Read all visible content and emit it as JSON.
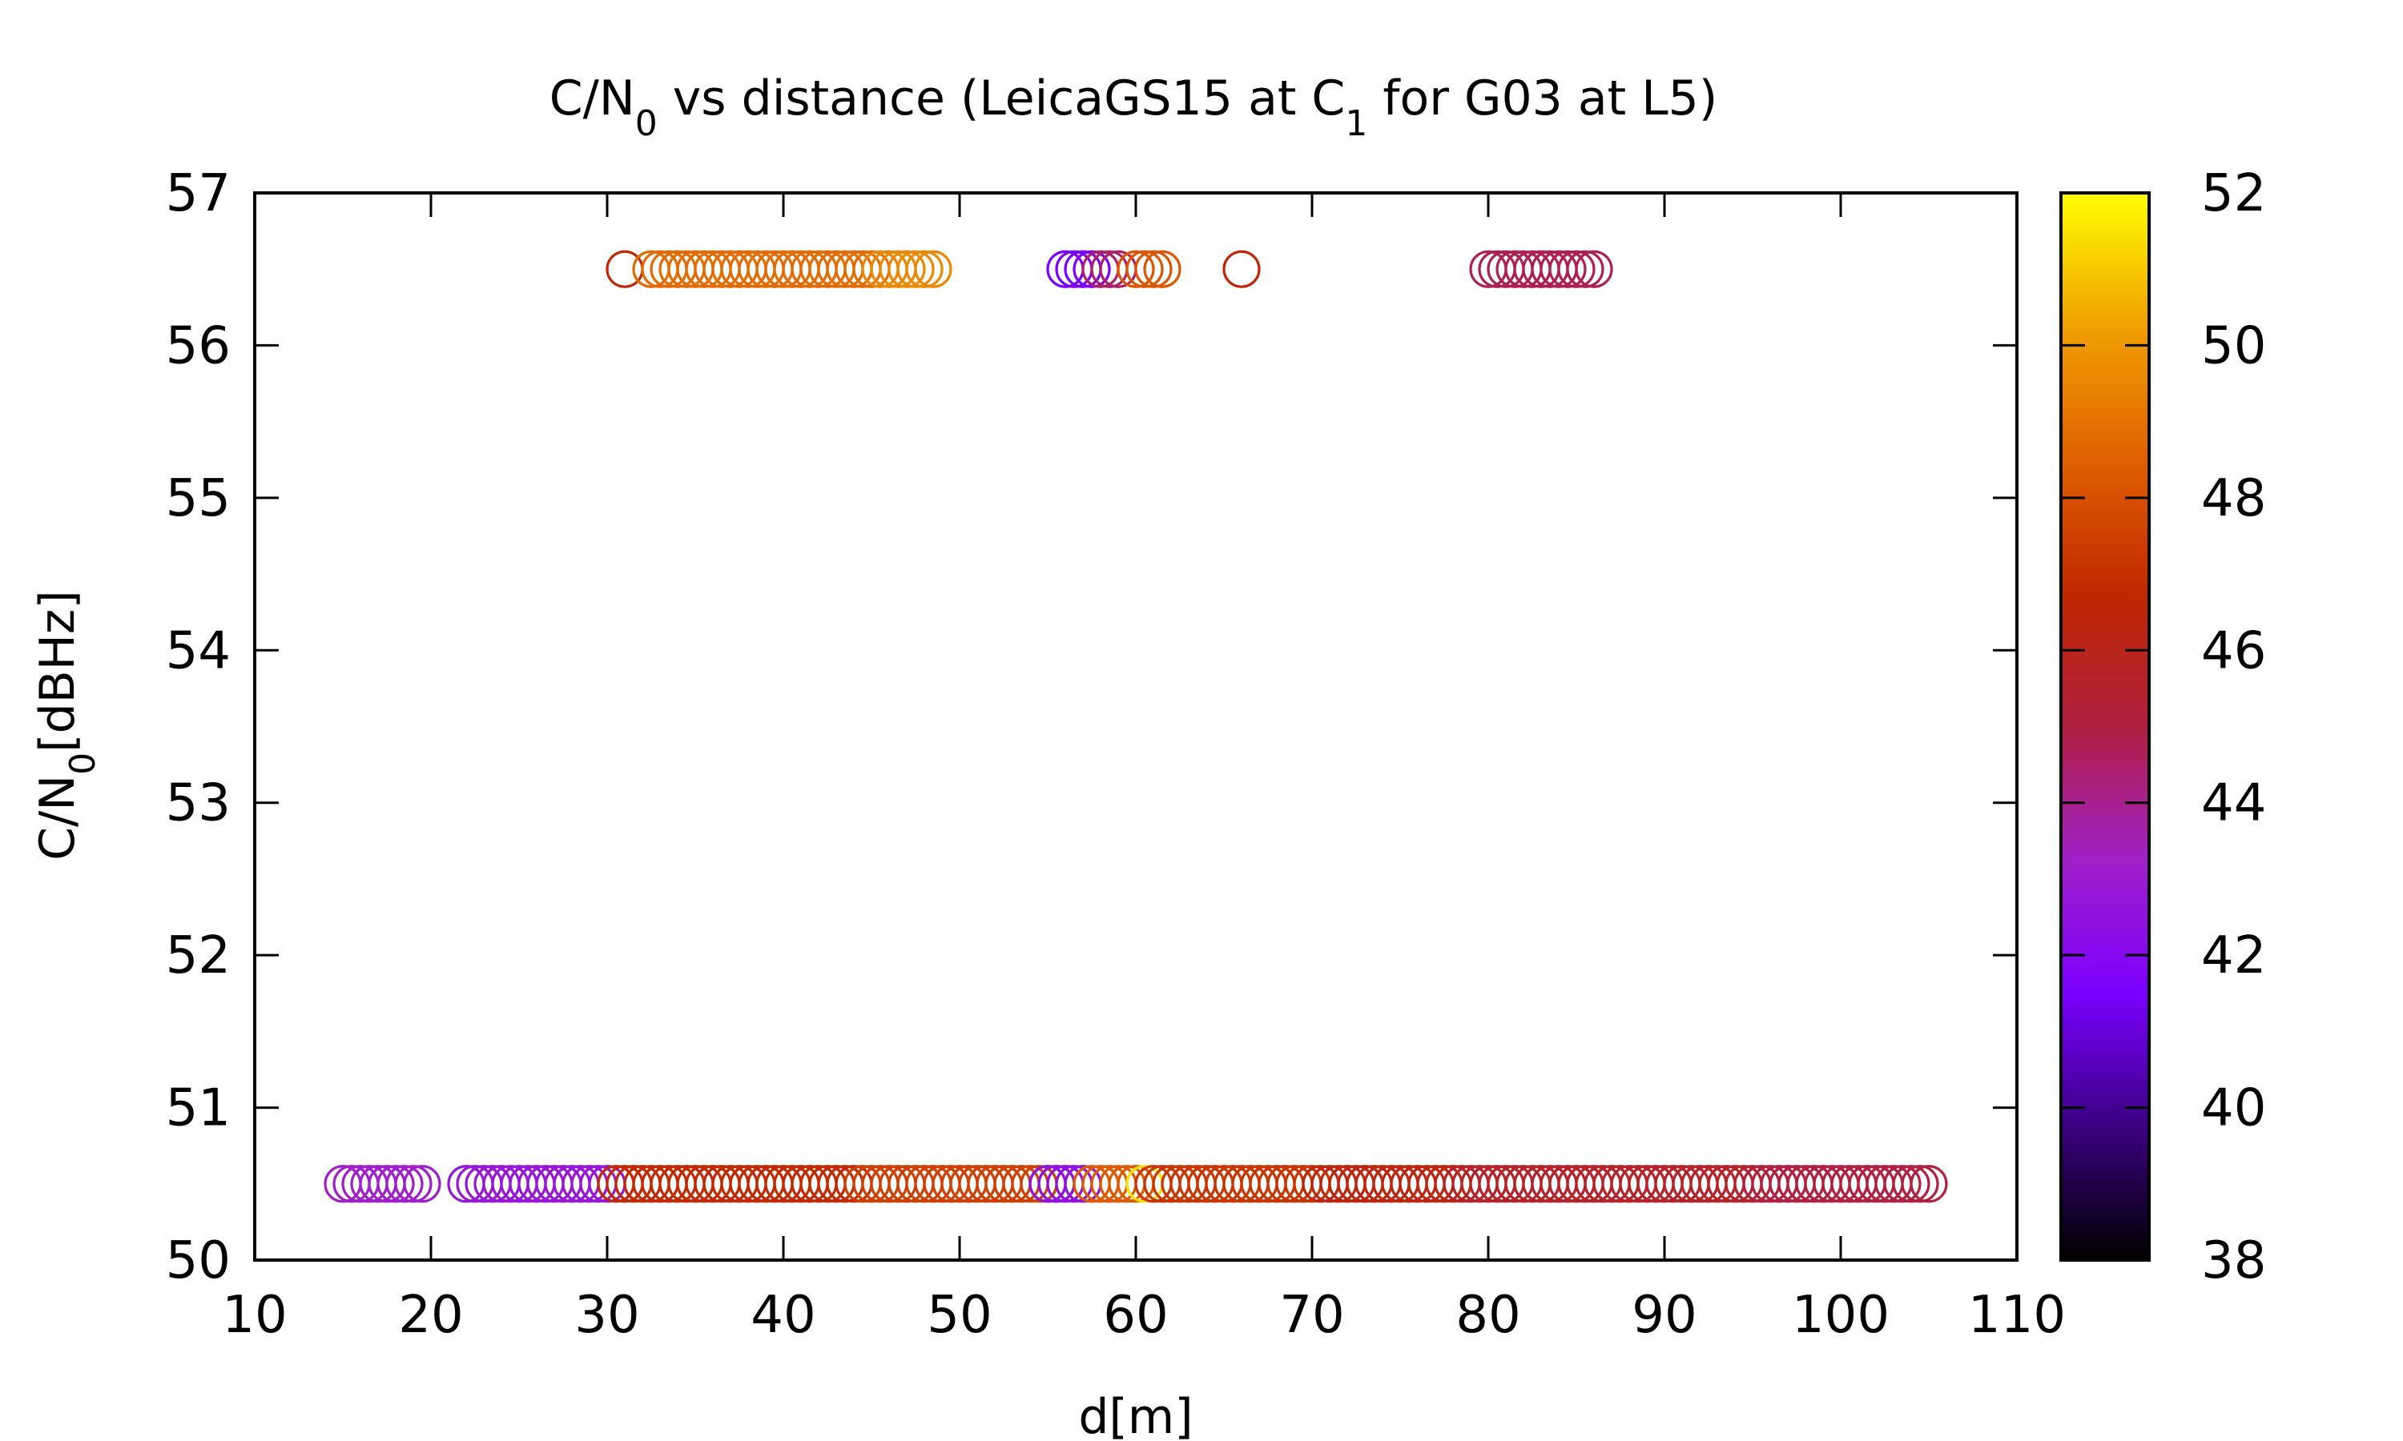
{
  "chart_data": {
    "type": "scatter",
    "title": {
      "parts": [
        {
          "text": "C/N",
          "sub": false
        },
        {
          "text": "0",
          "sub": true
        },
        {
          "text": " vs distance (LeicaGS15 at C",
          "sub": false
        },
        {
          "text": "1",
          "sub": true
        },
        {
          "text": " for G03 at L5)",
          "sub": false
        }
      ]
    },
    "xlabel": "d[m]",
    "ylabel": {
      "parts": [
        {
          "text": "C/N",
          "sub": false
        },
        {
          "text": "0",
          "sub": true
        },
        {
          "text": "[dBHz]",
          "sub": false
        }
      ]
    },
    "xlim": [
      10,
      110
    ],
    "ylim": [
      50,
      57
    ],
    "xticks": [
      10,
      20,
      30,
      40,
      50,
      60,
      70,
      80,
      90,
      100,
      110
    ],
    "yticks": [
      50,
      51,
      52,
      53,
      54,
      55,
      56,
      57
    ],
    "colorbar": {
      "range": [
        38,
        52
      ],
      "ticks": [
        38,
        40,
        42,
        44,
        46,
        48,
        50,
        52
      ],
      "palette": [
        "#000000",
        "#3a0080",
        "#7a00ff",
        "#a020c8",
        "#b02040",
        "#c02800",
        "#e06000",
        "#f0a000",
        "#ffff00"
      ]
    },
    "marker": "open-circle",
    "grid": false,
    "legend": "none",
    "series": [
      {
        "y": 56.5,
        "points": [
          {
            "x_start": 31,
            "x_end": 31,
            "step": 1,
            "c": 46.5
          },
          {
            "x_start": 32.5,
            "x_end": 45,
            "step": 0.5,
            "c": 48.8
          },
          {
            "x_start": 45.5,
            "x_end": 48.5,
            "step": 0.5,
            "c": 49.6
          },
          {
            "x_start": 56,
            "x_end": 57.5,
            "step": 0.5,
            "c": 41.5
          },
          {
            "x_start": 58,
            "x_end": 59,
            "step": 0.5,
            "c": 44.5
          },
          {
            "x_start": 60,
            "x_end": 61.5,
            "step": 0.5,
            "c": 48.2
          },
          {
            "x_start": 66,
            "x_end": 66,
            "step": 1,
            "c": 46.5
          },
          {
            "x_start": 80,
            "x_end": 86,
            "step": 0.5,
            "c": 44.8
          }
        ]
      },
      {
        "y": 50.5,
        "points": [
          {
            "x_start": 15,
            "x_end": 19.5,
            "step": 0.5,
            "c": 43.2
          },
          {
            "x_start": 22,
            "x_end": 30,
            "step": 0.5,
            "c": 42.8
          },
          {
            "x_start": 30.5,
            "x_end": 44,
            "step": 0.5,
            "c": 46.8
          },
          {
            "x_start": 44.5,
            "x_end": 55.5,
            "step": 0.5,
            "c": 47.5
          },
          {
            "x_start": 55,
            "x_end": 57,
            "step": 0.5,
            "c": 42.5
          },
          {
            "x_start": 57.5,
            "x_end": 60,
            "step": 0.5,
            "c": 48.3
          },
          {
            "x_start": 60.5,
            "x_end": 60.5,
            "step": 1,
            "c": 51.5
          },
          {
            "x_start": 61,
            "x_end": 70,
            "step": 0.5,
            "c": 47.2
          },
          {
            "x_start": 70.5,
            "x_end": 78,
            "step": 0.5,
            "c": 46.3
          },
          {
            "x_start": 78.5,
            "x_end": 95,
            "step": 0.5,
            "c": 45.6
          },
          {
            "x_start": 95.5,
            "x_end": 105,
            "step": 0.5,
            "c": 45.0
          }
        ]
      }
    ]
  }
}
